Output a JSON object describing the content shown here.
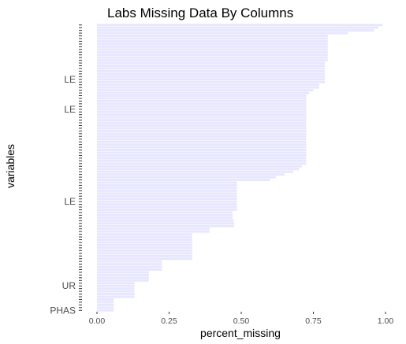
{
  "chart_data": {
    "type": "bar",
    "orientation": "horizontal",
    "title": "Labs Missing Data By Columns",
    "xlabel": "percent_missing",
    "ylabel": "variables",
    "xlim": [
      0,
      1.04
    ],
    "x_ticks": [
      "0.00",
      "0.25",
      "0.50",
      "0.75",
      "1.00"
    ],
    "x_tick_values": [
      0,
      0.25,
      0.5,
      0.75,
      1
    ],
    "grid": false,
    "bar_color": "#e6e6ff",
    "categories_note": "",
    "category_labels_visible": [
      {
        "label": "LE",
        "index": 85
      },
      {
        "label": "LE",
        "index": 74
      },
      {
        "label": "LE",
        "index": 40
      },
      {
        "label": "UR",
        "index": 9
      },
      {
        "label": "PHAS",
        "index": 0
      }
    ],
    "values": [
      0.058,
      0.058,
      0.058,
      0.058,
      0.058,
      0.13,
      0.13,
      0.13,
      0.13,
      0.13,
      0.13,
      0.18,
      0.18,
      0.18,
      0.18,
      0.225,
      0.225,
      0.225,
      0.225,
      0.33,
      0.33,
      0.33,
      0.33,
      0.33,
      0.33,
      0.33,
      0.33,
      0.33,
      0.33,
      0.39,
      0.39,
      0.475,
      0.475,
      0.475,
      0.47,
      0.47,
      0.47,
      0.485,
      0.485,
      0.485,
      0.485,
      0.485,
      0.485,
      0.485,
      0.485,
      0.485,
      0.485,
      0.485,
      0.6,
      0.62,
      0.65,
      0.68,
      0.7,
      0.71,
      0.725,
      0.725,
      0.725,
      0.725,
      0.725,
      0.725,
      0.725,
      0.725,
      0.725,
      0.725,
      0.725,
      0.725,
      0.725,
      0.725,
      0.725,
      0.725,
      0.725,
      0.725,
      0.725,
      0.725,
      0.725,
      0.725,
      0.725,
      0.725,
      0.725,
      0.725,
      0.735,
      0.75,
      0.77,
      0.77,
      0.79,
      0.79,
      0.79,
      0.79,
      0.79,
      0.79,
      0.79,
      0.79,
      0.8,
      0.8,
      0.8,
      0.8,
      0.8,
      0.8,
      0.8,
      0.8,
      0.8,
      0.8,
      0.87,
      0.96,
      0.975,
      0.99
    ]
  }
}
